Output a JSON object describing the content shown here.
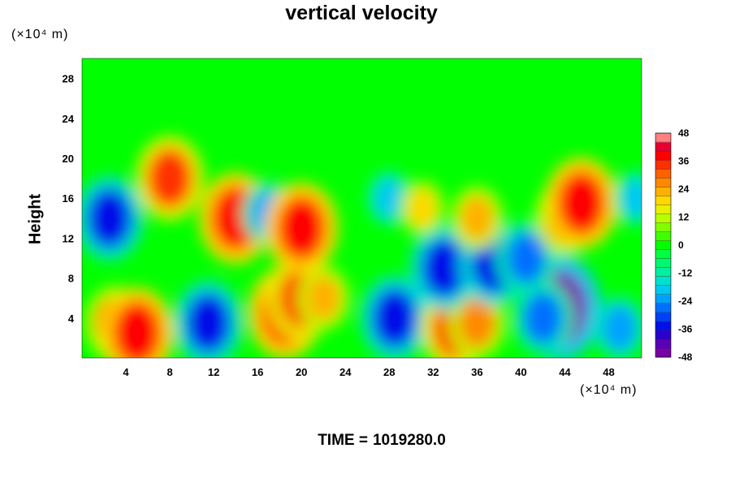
{
  "chart_data": {
    "type": "heatmap",
    "title": "vertical velocity",
    "xlabel": "",
    "ylabel": "Height",
    "x_unit": "(×10⁴ m)",
    "y_unit": "(×10⁴ m)",
    "xlim": [
      0,
      51
    ],
    "ylim": [
      0,
      30
    ],
    "x_ticks": [
      4,
      8,
      12,
      16,
      20,
      24,
      28,
      32,
      36,
      40,
      44,
      48
    ],
    "y_ticks": [
      4,
      8,
      12,
      16,
      20,
      24,
      28
    ],
    "colorbar": {
      "range": [
        -48,
        48
      ],
      "ticks": [
        48,
        36,
        24,
        12,
        0,
        -12,
        -24,
        -36,
        -48
      ],
      "colors": [
        "#7a00a8",
        "#5a00b8",
        "#2a00d0",
        "#0010e8",
        "#0040f8",
        "#0070ff",
        "#00a0ff",
        "#00c8f0",
        "#00e0d0",
        "#00f0a0",
        "#00f870",
        "#00ff40",
        "#00ff00",
        "#40ff00",
        "#80ff00",
        "#b8ff00",
        "#e8f000",
        "#ffd800",
        "#ffb000",
        "#ff8800",
        "#ff6000",
        "#ff3000",
        "#ff0000",
        "#e80030",
        "#ff8080"
      ]
    },
    "features": [
      {
        "x": 3,
        "y": 3.5,
        "value": 30
      },
      {
        "x": 5,
        "y": 2.5,
        "value": 40
      },
      {
        "x": 11.5,
        "y": 3.5,
        "value": -36
      },
      {
        "x": 18.5,
        "y": 4.5,
        "value": 40
      },
      {
        "x": 20,
        "y": 6,
        "value": 36
      },
      {
        "x": 22,
        "y": 6,
        "value": 24
      },
      {
        "x": 28.5,
        "y": 4,
        "value": -36
      },
      {
        "x": 34,
        "y": 3,
        "value": 36
      },
      {
        "x": 36,
        "y": 3.5,
        "value": 28
      },
      {
        "x": 43.5,
        "y": 5,
        "value": -48
      },
      {
        "x": 42,
        "y": 4,
        "value": -30
      },
      {
        "x": 2.5,
        "y": 14,
        "value": -36
      },
      {
        "x": 8,
        "y": 18,
        "value": 36
      },
      {
        "x": 14,
        "y": 14,
        "value": 40
      },
      {
        "x": 17,
        "y": 14.5,
        "value": -24
      },
      {
        "x": 20,
        "y": 13,
        "value": 40
      },
      {
        "x": 33,
        "y": 9,
        "value": -36
      },
      {
        "x": 37.5,
        "y": 9.5,
        "value": -36
      },
      {
        "x": 40.5,
        "y": 10,
        "value": -30
      },
      {
        "x": 44,
        "y": 14,
        "value": 30
      },
      {
        "x": 45.5,
        "y": 15.5,
        "value": 40
      },
      {
        "x": 36,
        "y": 14,
        "value": 24
      },
      {
        "x": 28,
        "y": 16,
        "value": -20
      },
      {
        "x": 31,
        "y": 15,
        "value": 20
      },
      {
        "x": 50.5,
        "y": 16,
        "value": -20
      },
      {
        "x": 49,
        "y": 3,
        "value": -24
      }
    ]
  },
  "footer": {
    "time_label": "TIME =",
    "time_value": "1019280.0"
  }
}
